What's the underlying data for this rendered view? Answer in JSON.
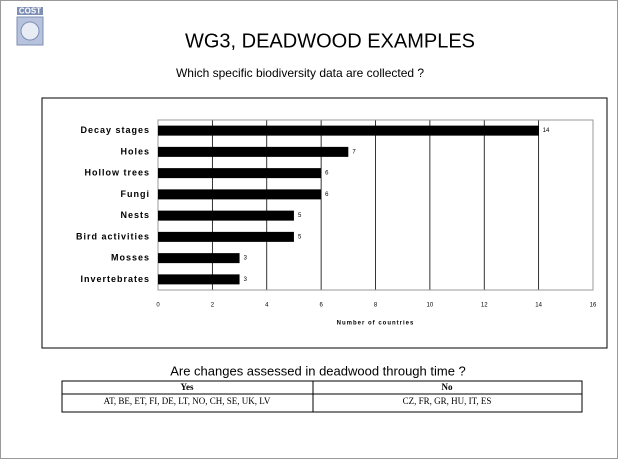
{
  "header": {
    "logo": "COST",
    "title": "WG3, DEADWOOD EXAMPLES",
    "subtitle": "Which specific biodiversity data are collected ?"
  },
  "chart_data": {
    "type": "barh",
    "categories": [
      "Decay stages",
      "Holes",
      "Hollow trees",
      "Fungi",
      "Nests",
      "Bird activities",
      "Mosses",
      "Invertebrates"
    ],
    "values": [
      14,
      7,
      6,
      6,
      5,
      5,
      3,
      3
    ],
    "color": "#000000",
    "xlim": [
      0,
      16
    ],
    "xticks": [
      0,
      2,
      4,
      6,
      8,
      10,
      12,
      14,
      16
    ],
    "grid": true,
    "xlabel": "Number of countries"
  },
  "question": "Are changes assessed in deadwood through time ?",
  "table": {
    "header": [
      "Yes",
      "No"
    ],
    "rows": [
      [
        "AT, BE, ET, FI, DE, LT, NO, CH, SE, UK, LV",
        "CZ, FR, GR, HU, IT, ES"
      ]
    ]
  }
}
